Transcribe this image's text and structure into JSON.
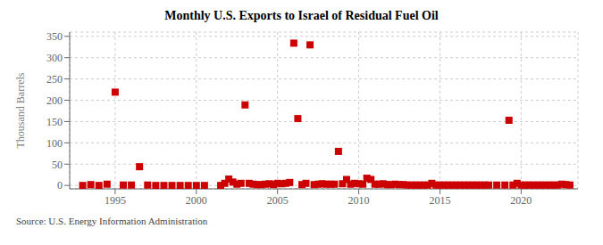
{
  "chart_data": {
    "type": "scatter",
    "title": "Monthly U.S. Exports to Israel of Residual Fuel Oil",
    "ylabel": "Thousand Barrels",
    "annotations": [
      "Source: U.S. Energy Information Administration"
    ],
    "color": "#cc0000",
    "marker": "square",
    "grid": true,
    "xlim": [
      1992.2,
      2023.5
    ],
    "xticks": [
      1995,
      2000,
      2005,
      2010,
      2015,
      2020
    ],
    "ylim": [
      -8,
      360
    ],
    "yticks": [
      0,
      50,
      100,
      150,
      200,
      250,
      300,
      350
    ],
    "x": [
      1993.0,
      1993.5,
      1994.0,
      1994.5,
      1995.0,
      1995.5,
      1996.0,
      1996.5,
      1997.0,
      1997.5,
      1998.0,
      1998.5,
      1999.0,
      1999.5,
      2000.0,
      2000.5,
      2001.5,
      2001.75,
      2002.0,
      2002.25,
      2002.5,
      2002.75,
      2003.0,
      2003.25,
      2003.5,
      2003.75,
      2004.0,
      2004.25,
      2004.5,
      2004.75,
      2005.0,
      2005.25,
      2005.5,
      2005.75,
      2006.0,
      2006.25,
      2006.5,
      2006.75,
      2007.0,
      2007.25,
      2007.5,
      2007.75,
      2008.0,
      2008.25,
      2008.5,
      2008.75,
      2009.0,
      2009.25,
      2009.5,
      2009.75,
      2010.0,
      2010.25,
      2010.5,
      2010.75,
      2011.0,
      2011.25,
      2011.5,
      2011.75,
      2012.0,
      2012.25,
      2012.5,
      2012.75,
      2013.0,
      2013.25,
      2013.5,
      2013.75,
      2014.0,
      2014.25,
      2014.5,
      2014.75,
      2015.0,
      2015.25,
      2015.5,
      2015.75,
      2016.0,
      2016.25,
      2016.5,
      2016.75,
      2017.0,
      2017.25,
      2017.5,
      2017.75,
      2018.0,
      2018.5,
      2019.0,
      2019.25,
      2019.5,
      2019.75,
      2020.0,
      2020.25,
      2020.5,
      2020.75,
      2021.0,
      2021.25,
      2021.5,
      2021.75,
      2022.0,
      2022.25,
      2022.5,
      2022.75,
      2023.0
    ],
    "values": [
      0,
      2,
      0,
      3,
      219,
      1,
      1,
      44,
      1,
      0,
      0,
      0,
      0,
      0,
      0,
      0,
      0,
      5,
      15,
      8,
      3,
      5,
      189,
      5,
      3,
      2,
      2,
      3,
      4,
      2,
      5,
      4,
      5,
      7,
      334,
      157,
      2,
      5,
      330,
      2,
      3,
      4,
      3,
      3,
      3,
      80,
      4,
      14,
      3,
      5,
      4,
      3,
      17,
      14,
      3,
      3,
      4,
      2,
      2,
      3,
      2,
      2,
      1,
      1,
      1,
      1,
      1,
      1,
      5,
      1,
      1,
      1,
      1,
      1,
      1,
      1,
      1,
      1,
      1,
      1,
      1,
      1,
      1,
      1,
      1,
      153,
      1,
      5,
      1,
      1,
      1,
      1,
      1,
      1,
      1,
      1,
      1,
      1,
      3,
      2,
      1
    ]
  }
}
